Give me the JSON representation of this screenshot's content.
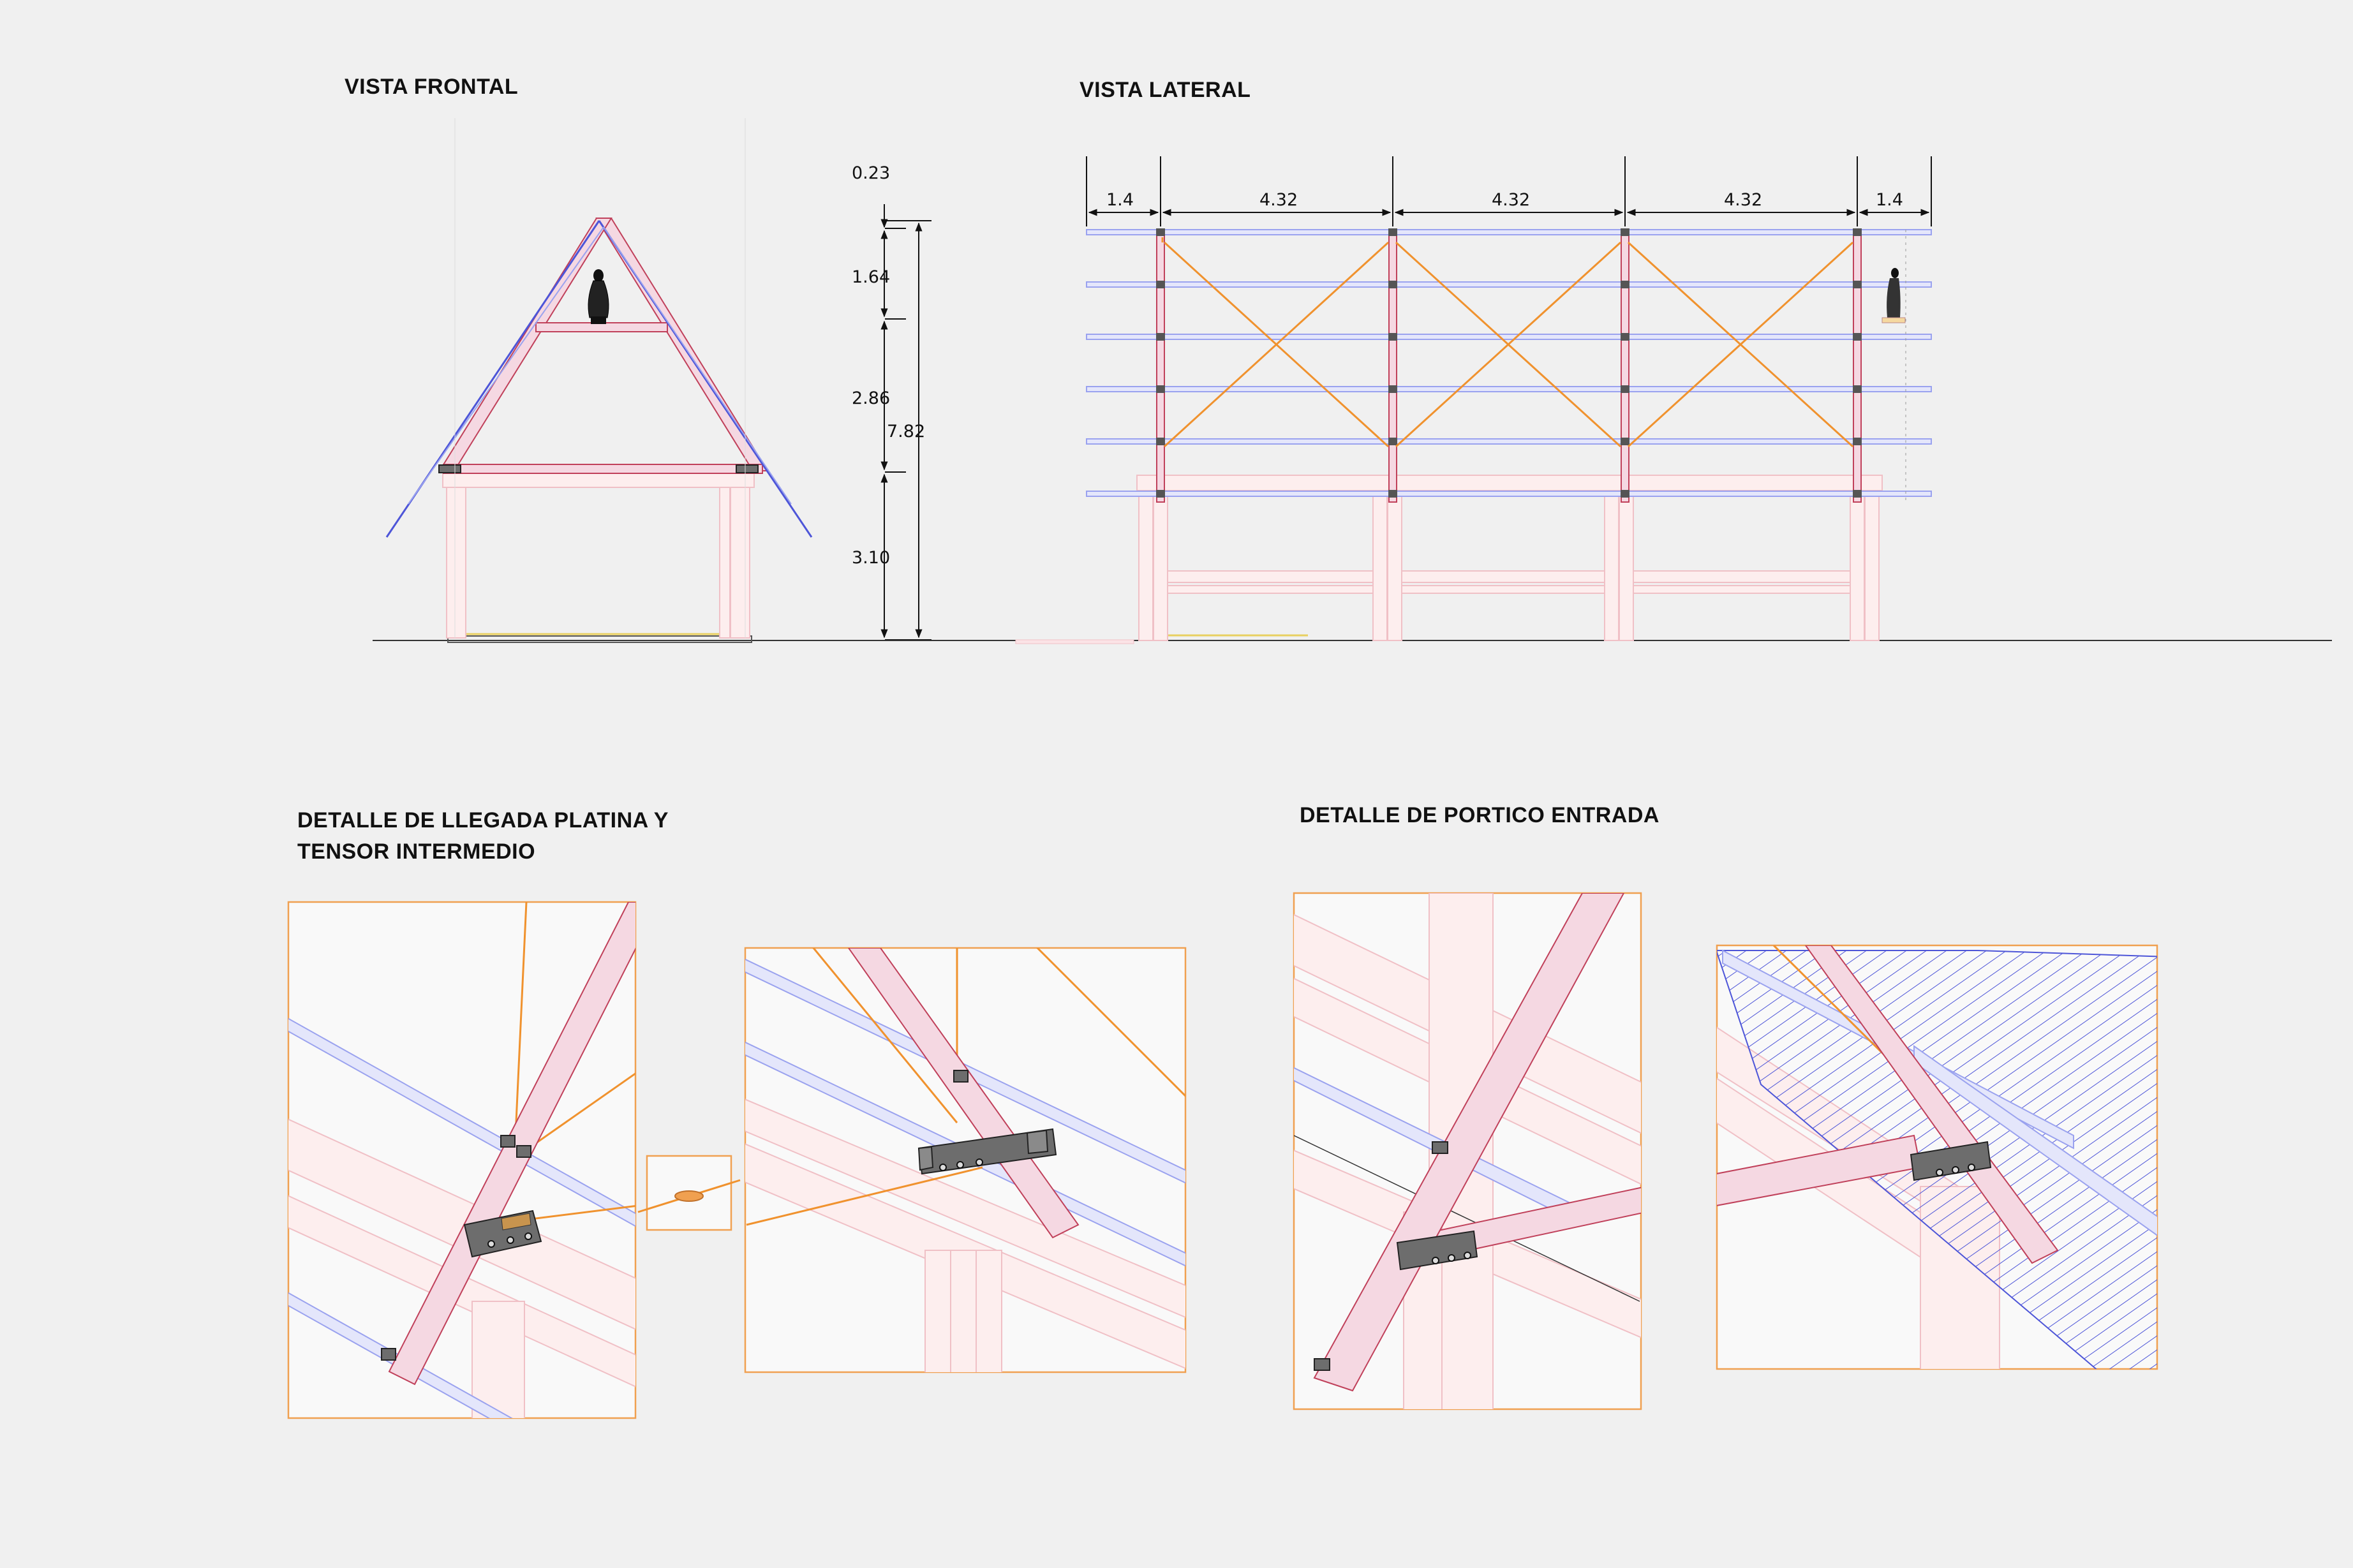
{
  "titles": {
    "front": "VISTA FRONTAL",
    "side": "VISTA LATERAL",
    "detail_left_line1": "DETALLE DE LLEGADA PLATINA Y",
    "detail_left_line2": "TENSOR INTERMEDIO",
    "detail_right": "DETALLE  DE PORTICO ENTRADA"
  },
  "vertical_dimensions": {
    "d1": "0.23",
    "d2": "1.64",
    "d3": "2.86",
    "d4": "3.10",
    "total": "7.82"
  },
  "horizontal_dimensions": [
    "1.4",
    "4.32",
    "4.32",
    "4.32",
    "1.4"
  ],
  "colors": {
    "background": "#f0f0f0",
    "rafter": "#f5d8e2",
    "rafter_edge": "#c0405a",
    "purlin": "#e4e6fb",
    "roof_edge": "#4d55d8",
    "brace": "#f0922e",
    "steel_plate": "#6d6d6d",
    "panel_border": "#f0a050"
  }
}
